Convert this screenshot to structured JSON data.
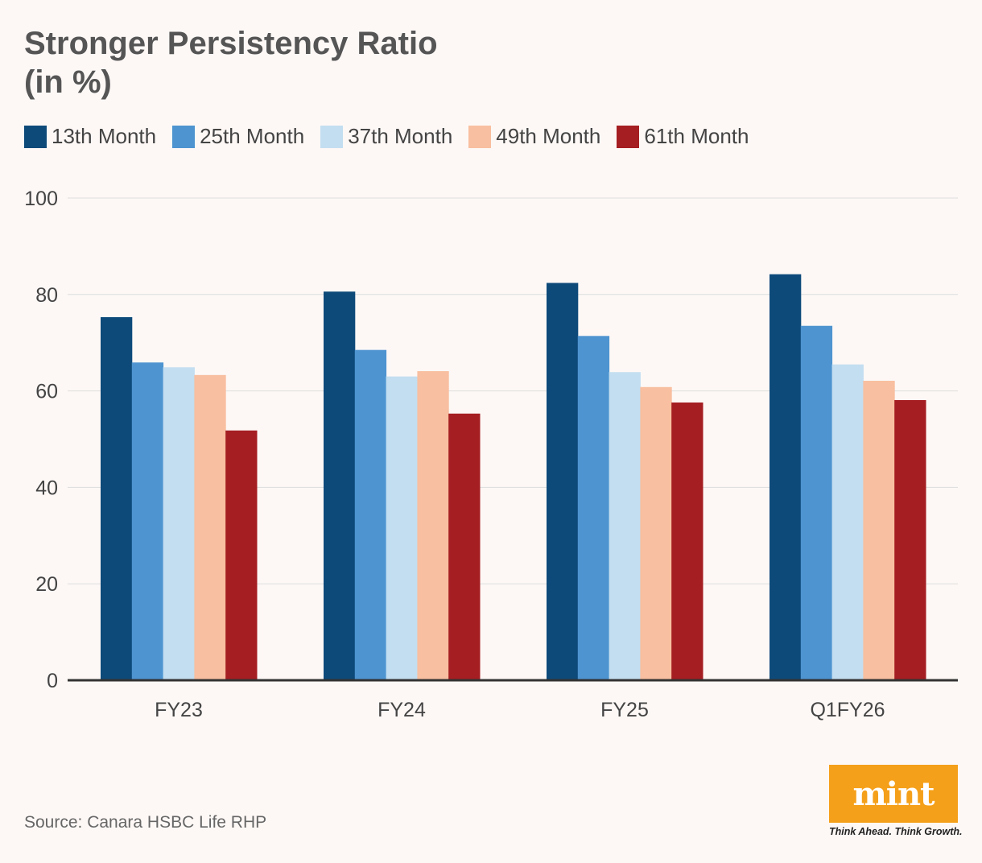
{
  "header": {
    "title_line1": "Stronger Persistency Ratio",
    "title_line2": "(in %)"
  },
  "chart_data": {
    "type": "bar",
    "title": "Stronger Persistency Ratio (in %)",
    "xlabel": "",
    "ylabel": "",
    "ylim": [
      0,
      100
    ],
    "yticks": [
      0,
      20,
      40,
      60,
      80,
      100
    ],
    "grid": true,
    "legend_position": "top-left",
    "categories": [
      "FY23",
      "FY24",
      "FY25",
      "Q1FY26"
    ],
    "series": [
      {
        "name": "13th Month",
        "color": "#0d4a7a",
        "values": [
          75.3,
          80.6,
          82.4,
          84.2
        ]
      },
      {
        "name": "25th Month",
        "color": "#4e94d0",
        "values": [
          65.9,
          68.5,
          71.4,
          73.5
        ]
      },
      {
        "name": "37th Month",
        "color": "#c3def0",
        "values": [
          64.9,
          63.0,
          63.9,
          65.5
        ]
      },
      {
        "name": "49th Month",
        "color": "#f8bfa0",
        "values": [
          63.3,
          64.1,
          60.8,
          62.1
        ]
      },
      {
        "name": "61st Month",
        "color": "#a51e22",
        "values": [
          51.8,
          55.3,
          57.6,
          58.1
        ]
      }
    ],
    "legend_labels": [
      "13th Month",
      "25th Month",
      "37th Month",
      "49th Month",
      "61th Month"
    ]
  },
  "footer": {
    "source": "Source: Canara HSBC Life RHP",
    "logo_text": "mint",
    "tagline": "Think Ahead. Think Growth.",
    "logo_color": "#f5a01a"
  }
}
